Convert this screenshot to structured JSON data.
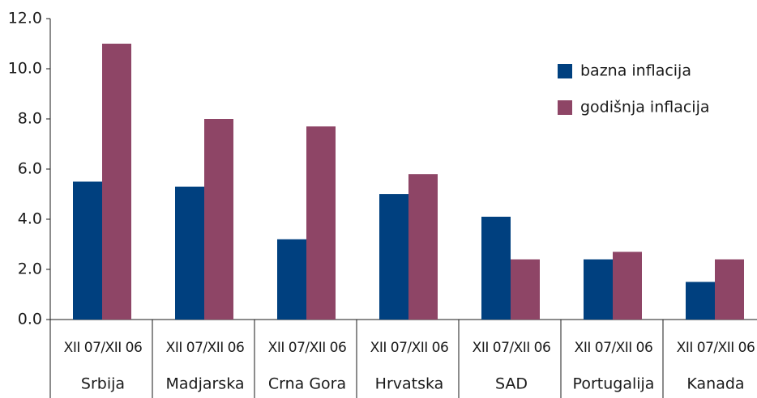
{
  "chart_data": {
    "type": "bar",
    "categories": [
      "Srbija",
      "Madjarska",
      "Crna Gora",
      "Hrvatska",
      "SAD",
      "Portugalija",
      "Kanada"
    ],
    "subcategories": [
      "XII 07/XII 06",
      "XII 07/XII 06",
      "XII 07/XII 06",
      "XII 07/XII 06",
      "XII 07/XII 06",
      "XII 07/XII 06",
      "XII 07/XII 06"
    ],
    "series": [
      {
        "name": "bazna inflacija",
        "color": "#00407f",
        "values": [
          5.5,
          5.3,
          3.2,
          5.0,
          4.1,
          2.4,
          1.5
        ]
      },
      {
        "name": "godišnja inflacija",
        "color": "#8e4566",
        "values": [
          11.0,
          8.0,
          7.7,
          5.8,
          2.4,
          2.7,
          2.4
        ]
      }
    ],
    "ylim": [
      0,
      12
    ],
    "yticks": [
      {
        "value": 0,
        "label": "0.0"
      },
      {
        "value": 2,
        "label": "2.0"
      },
      {
        "value": 4,
        "label": "4.0"
      },
      {
        "value": 6,
        "label": "6.0"
      },
      {
        "value": 8,
        "label": "8.0"
      },
      {
        "value": 10,
        "label": "10.0"
      },
      {
        "value": 12,
        "label": "12.0"
      }
    ],
    "legend": "top-right"
  }
}
